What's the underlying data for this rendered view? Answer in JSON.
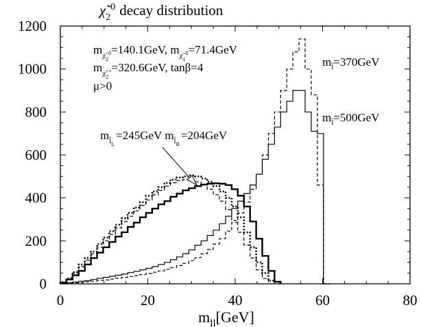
{
  "chart_data": {
    "type": "line",
    "step": true,
    "title": "χ̃₂⁰ decay distribution",
    "xlabel": "m_ll[GeV]",
    "ylabel": "",
    "xlim": [
      0,
      80
    ],
    "ylim": [
      0,
      1200
    ],
    "xticks": [
      0,
      20,
      40,
      60,
      80
    ],
    "yticks": [
      0,
      200,
      400,
      600,
      800,
      1000,
      1200
    ],
    "grid": false,
    "bin_width": 1.4,
    "parameters_text": [
      "m_χ₂⁰=140.1GeV, m_χ₁⁰=71.4GeV",
      "m_χ₂⁺=320.6GeV, tanβ=4",
      "μ>0"
    ],
    "annotations": [
      {
        "text": "m_l̃L=245GeV m_l̃R=204GeV",
        "arrow": true,
        "arrow_tip": [
          31,
          465
        ]
      },
      {
        "text": "m_l̃=370GeV"
      },
      {
        "text": "m_l̃=500GeV"
      }
    ],
    "series": [
      {
        "style": "thick-solid",
        "width": 2.4,
        "dash": "",
        "x_start": 0,
        "values": [
          5,
          20,
          40,
          60,
          90,
          120,
          145,
          170,
          195,
          220,
          240,
          265,
          285,
          310,
          330,
          350,
          370,
          385,
          405,
          420,
          435,
          445,
          455,
          462,
          466,
          468,
          466,
          460,
          440,
          410,
          360,
          290,
          210,
          130,
          60,
          10
        ]
      },
      {
        "style": "thick-dotted",
        "width": 2.6,
        "dash": "2,2.5",
        "x_start": 0,
        "values": [
          8,
          25,
          55,
          90,
          120,
          150,
          185,
          215,
          245,
          275,
          305,
          330,
          355,
          380,
          410,
          430,
          450,
          470,
          485,
          495,
          500,
          505,
          500,
          490,
          475,
          455,
          430,
          400,
          360,
          310,
          240,
          170,
          100,
          50,
          15
        ]
      },
      {
        "style": "dashed",
        "width": 1.2,
        "dash": "5,3",
        "x_start": 0,
        "values": [
          6,
          22,
          50,
          80,
          110,
          140,
          170,
          200,
          230,
          260,
          290,
          315,
          340,
          365,
          390,
          415,
          435,
          455,
          470,
          480,
          485,
          482,
          475,
          460,
          440,
          415,
          385,
          345,
          295,
          240,
          180,
          120,
          65,
          25
        ]
      },
      {
        "style": "thin-solid",
        "width": 1.2,
        "dash": "",
        "x_start": 0,
        "values": [
          2,
          5,
          8,
          12,
          15,
          20,
          25,
          30,
          35,
          40,
          45,
          52,
          58,
          65,
          72,
          80,
          90,
          100,
          112,
          125,
          140,
          158,
          180,
          200,
          225,
          250,
          280,
          315,
          350,
          385,
          420,
          460,
          510,
          580,
          650,
          730,
          800,
          850,
          900,
          900,
          800,
          710,
          700,
          0
        ]
      },
      {
        "style": "thin-dashed",
        "width": 1.2,
        "dash": "5,3",
        "x_start": 0,
        "values": [
          2,
          3,
          5,
          7,
          10,
          12,
          15,
          18,
          22,
          26,
          30,
          34,
          38,
          43,
          48,
          54,
          60,
          68,
          76,
          85,
          95,
          108,
          122,
          140,
          160,
          185,
          210,
          245,
          285,
          330,
          380,
          440,
          510,
          600,
          700,
          800,
          900,
          1000,
          1080,
          1140,
          1000,
          880,
          460,
          0
        ]
      }
    ]
  }
}
